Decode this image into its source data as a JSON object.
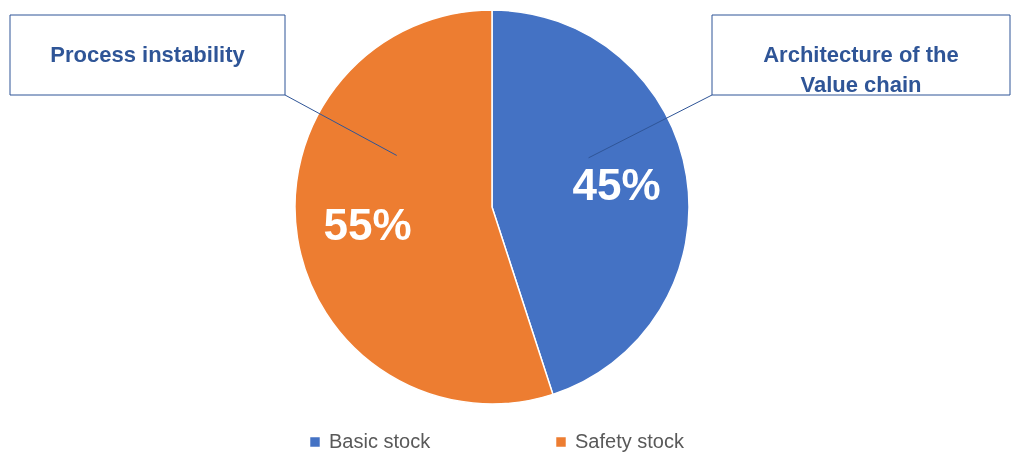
{
  "chart_data": {
    "type": "pie",
    "categories": [
      "Basic stock",
      "Safety stock"
    ],
    "values": [
      45,
      55
    ],
    "colors": [
      "#4472c4",
      "#ed7d31"
    ],
    "value_labels": [
      "45%",
      "55%"
    ],
    "annotations": [
      "Architecture of the Value chain",
      "Process instability"
    ],
    "legend": "bottom"
  }
}
